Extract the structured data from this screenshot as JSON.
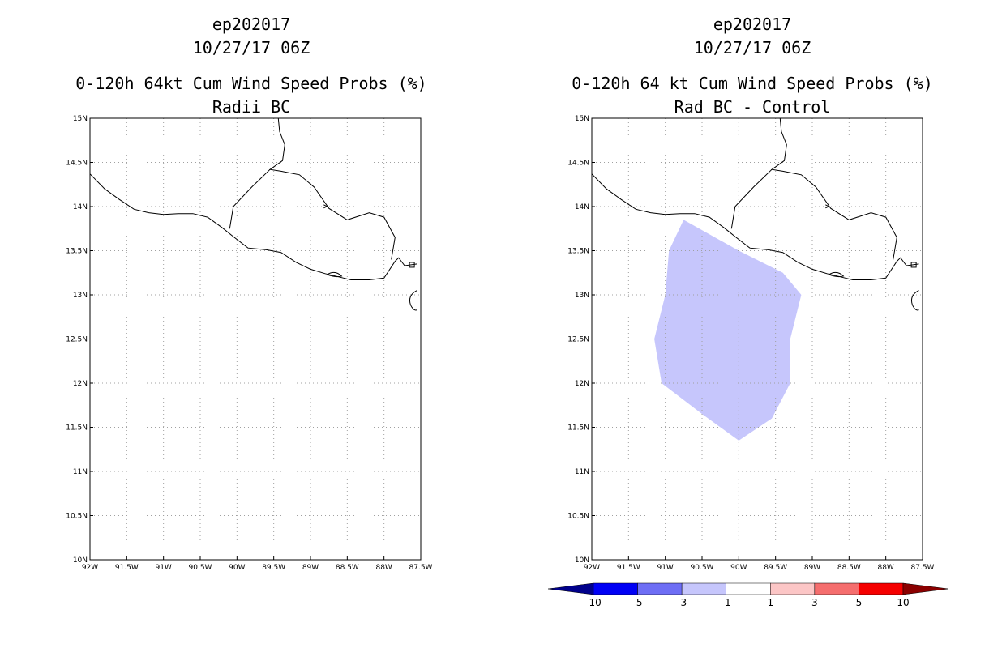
{
  "panels": [
    {
      "title_line1": "ep202017",
      "title_line2": "10/27/17 06Z",
      "title_line3": "0-120h 64kt Cum Wind Speed Probs (%)",
      "title_line4": "Radii BC",
      "has_field": false
    },
    {
      "title_line1": "ep202017",
      "title_line2": "10/27/17 06Z",
      "title_line3": "0-120h 64 kt Cum Wind Speed Probs (%)",
      "title_line4": "Rad BC - Control",
      "has_field": true
    }
  ],
  "lon_labels": [
    "92W",
    "91.5W",
    "91W",
    "90.5W",
    "90W",
    "89.5W",
    "89W",
    "88.5W",
    "88W",
    "87.5W"
  ],
  "lat_labels": [
    "10N",
    "10.5N",
    "11N",
    "11.5N",
    "12N",
    "12.5N",
    "13N",
    "13.5N",
    "14N",
    "14.5N",
    "15N"
  ],
  "lon_range": [
    -92,
    -87.5
  ],
  "lat_range": [
    10,
    15
  ],
  "field_region": {
    "value_class": "-3 to -1",
    "color": "#c6c6fc",
    "polygon_lonlat": [
      [
        -90.75,
        13.85
      ],
      [
        -90.0,
        13.5
      ],
      [
        -89.4,
        13.25
      ],
      [
        -89.15,
        13.0
      ],
      [
        -89.3,
        12.5
      ],
      [
        -89.3,
        12.0
      ],
      [
        -89.55,
        11.6
      ],
      [
        -90.0,
        11.35
      ],
      [
        -90.5,
        11.65
      ],
      [
        -91.05,
        12.0
      ],
      [
        -91.15,
        12.5
      ],
      [
        -91.0,
        13.0
      ],
      [
        -90.95,
        13.5
      ]
    ]
  },
  "coastline_lonlat": [
    [
      -92.0,
      14.37
    ],
    [
      -91.8,
      14.2
    ],
    [
      -91.6,
      14.08
    ],
    [
      -91.4,
      13.97
    ],
    [
      -91.2,
      13.93
    ],
    [
      -91.0,
      13.91
    ],
    [
      -90.8,
      13.92
    ],
    [
      -90.6,
      13.92
    ],
    [
      -90.4,
      13.88
    ],
    [
      -90.2,
      13.76
    ],
    [
      -90.05,
      13.66
    ],
    [
      -89.85,
      13.53
    ],
    [
      -89.6,
      13.51
    ],
    [
      -89.4,
      13.48
    ],
    [
      -89.2,
      13.37
    ],
    [
      -89.0,
      13.29
    ],
    [
      -88.8,
      13.24
    ],
    [
      -88.6,
      13.2
    ],
    [
      -88.45,
      13.17
    ],
    [
      -88.2,
      13.17
    ],
    [
      -88.0,
      13.19
    ],
    [
      -87.85,
      13.38
    ],
    [
      -87.8,
      13.42
    ],
    [
      -87.72,
      13.33
    ],
    [
      -87.55,
      13.35
    ]
  ],
  "border_lonlat": [
    [
      -89.45,
      15.1
    ],
    [
      -89.42,
      14.85
    ],
    [
      -89.35,
      14.7
    ],
    [
      -89.38,
      14.52
    ],
    [
      -89.55,
      14.42
    ],
    [
      -89.4,
      14.4
    ],
    [
      -89.15,
      14.36
    ],
    [
      -88.95,
      14.22
    ],
    [
      -88.75,
      13.98
    ],
    [
      -88.5,
      13.85
    ],
    [
      -88.2,
      13.93
    ],
    [
      -88.0,
      13.88
    ],
    [
      -87.85,
      13.65
    ],
    [
      -87.9,
      13.4
    ]
  ],
  "border2_lonlat": [
    [
      -89.55,
      14.42
    ],
    [
      -89.8,
      14.22
    ],
    [
      -90.05,
      14.0
    ],
    [
      -90.1,
      13.75
    ]
  ],
  "colorbar": {
    "labels": [
      "-10",
      "-5",
      "-3",
      "-1",
      "1",
      "3",
      "5",
      "10"
    ],
    "colors": [
      "#00008b",
      "#0000f5",
      "#6e6ef5",
      "#c6c6fc",
      "#ffffff",
      "#fcc6c6",
      "#f56e6e",
      "#f50000",
      "#8b0000"
    ]
  }
}
